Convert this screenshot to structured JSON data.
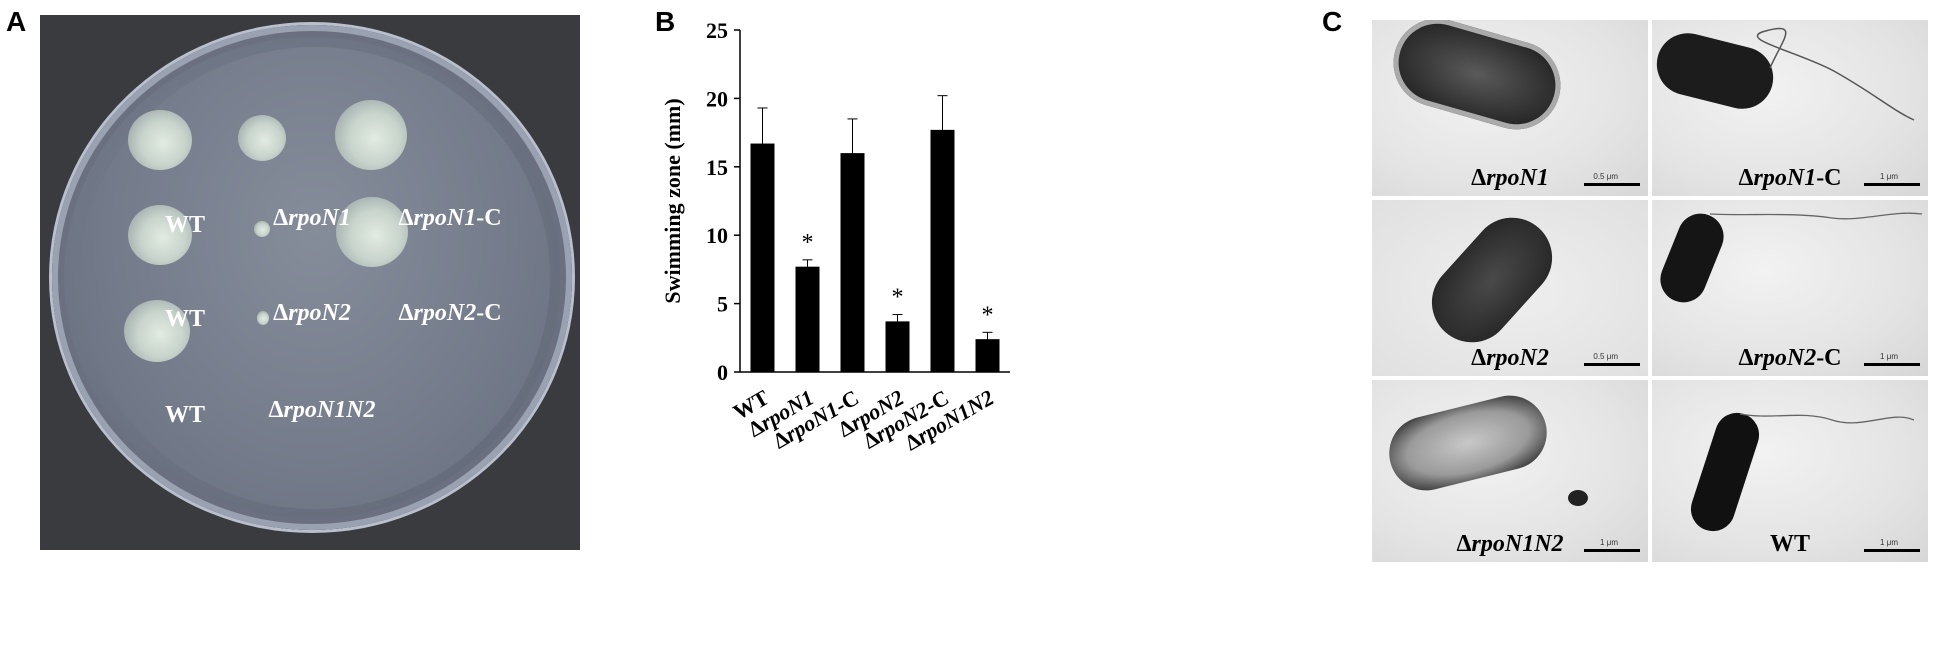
{
  "panel_labels": {
    "a": "A",
    "b": "B",
    "c": "C"
  },
  "plate": {
    "labels": [
      {
        "prefix": "",
        "italic": "",
        "text": "WT",
        "suffix": ""
      },
      {
        "prefix": "Δ",
        "italic": "rpoN1",
        "suffix": ""
      },
      {
        "prefix": "Δ",
        "italic": "rpoN1",
        "suffix": "-C"
      },
      {
        "prefix": "",
        "italic": "",
        "text": "WT",
        "suffix": ""
      },
      {
        "prefix": "Δ",
        "italic": "rpoN2",
        "suffix": ""
      },
      {
        "prefix": "Δ",
        "italic": "rpoN2",
        "suffix": "-C"
      },
      {
        "prefix": "",
        "italic": "",
        "text": "WT",
        "suffix": ""
      },
      {
        "prefix": "Δ",
        "italic": "rpoN1N2",
        "suffix": ""
      }
    ]
  },
  "chart_data": {
    "type": "bar",
    "categories": [
      "WT",
      "ΔrpoN1",
      "ΔrpoN1-C",
      "ΔrpoN2",
      "ΔrpoN2-C",
      "ΔrpoN1N2"
    ],
    "category_parts": [
      {
        "prefix": "",
        "italic": "",
        "suffix": "WT"
      },
      {
        "prefix": "Δ",
        "italic": "rpoN1",
        "suffix": ""
      },
      {
        "prefix": "Δ",
        "italic": "rpoN1",
        "suffix": "-C"
      },
      {
        "prefix": "Δ",
        "italic": "rpoN2",
        "suffix": ""
      },
      {
        "prefix": "Δ",
        "italic": "rpoN2",
        "suffix": "-C"
      },
      {
        "prefix": "Δ",
        "italic": "rpoN1N2",
        "suffix": ""
      }
    ],
    "values": [
      16.7,
      7.7,
      16.0,
      3.7,
      17.7,
      2.4
    ],
    "errors": [
      2.6,
      0.5,
      2.5,
      0.5,
      2.5,
      0.5
    ],
    "significance": [
      "",
      "*",
      "",
      "*",
      "",
      "*"
    ],
    "ylabel": "Swimming zone (mm)",
    "ylim": [
      0,
      25
    ],
    "yticks": [
      0,
      5,
      10,
      15,
      20,
      25
    ],
    "grid": false,
    "bar_color": "#000000"
  },
  "micrographs": [
    {
      "prefix": "Δ",
      "italic": "rpoN1",
      "suffix": "",
      "scale": "0.5 μm"
    },
    {
      "prefix": "Δ",
      "italic": "rpoN1",
      "suffix": "-C",
      "scale": "1 μm"
    },
    {
      "prefix": "Δ",
      "italic": "rpoN2",
      "suffix": "",
      "scale": "0.5 μm"
    },
    {
      "prefix": "Δ",
      "italic": "rpoN2",
      "suffix": "-C",
      "scale": "1 μm"
    },
    {
      "prefix": "Δ",
      "italic": "rpoN1N2",
      "suffix": "",
      "scale": "1 μm"
    },
    {
      "prefix": "",
      "italic": "",
      "suffix": "WT",
      "scale": "1 μm"
    }
  ]
}
